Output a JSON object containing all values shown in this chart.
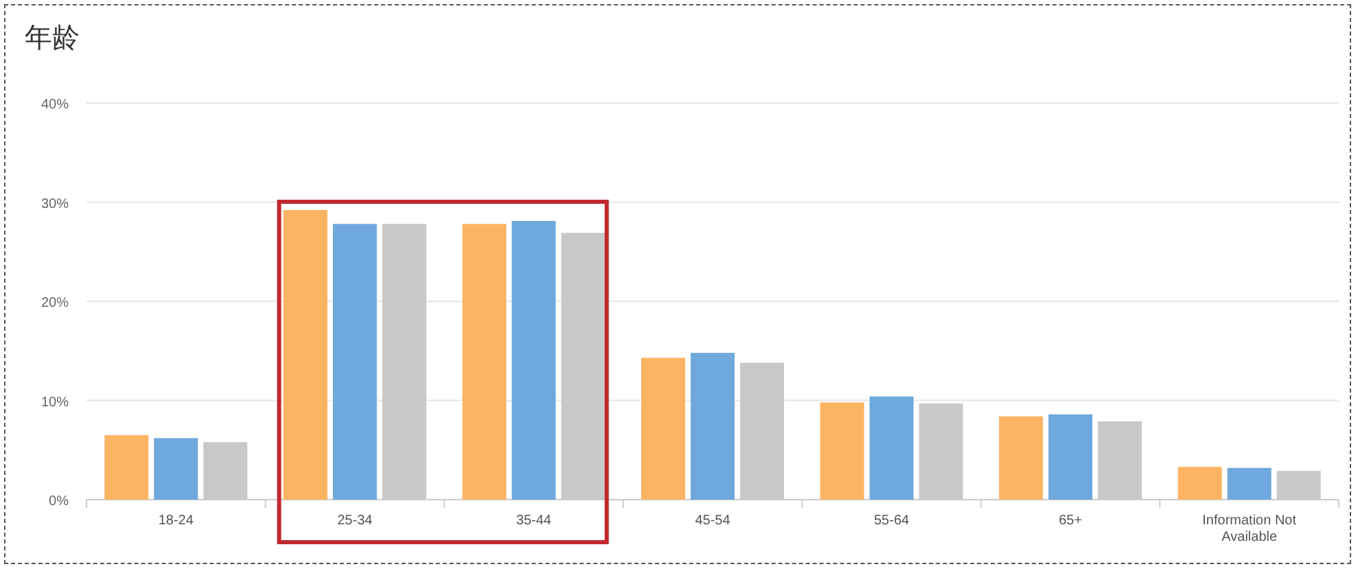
{
  "chart_data": {
    "type": "bar",
    "title": "年龄",
    "categories": [
      "18-24",
      "25-34",
      "35-44",
      "45-54",
      "55-64",
      "65+",
      "Information Not Available"
    ],
    "series": [
      {
        "color": "#fdb462",
        "values": [
          6.5,
          29.2,
          27.8,
          14.3,
          9.8,
          8.4,
          3.3
        ]
      },
      {
        "color": "#6fa8dc",
        "values": [
          6.2,
          27.8,
          28.1,
          14.8,
          10.4,
          8.6,
          3.2
        ]
      },
      {
        "color": "#c8c8c8",
        "values": [
          5.8,
          27.8,
          26.9,
          13.8,
          9.7,
          7.9,
          2.9
        ]
      }
    ],
    "ylim": [
      0,
      40
    ],
    "yticks": [
      {
        "value": 0,
        "label": "0%"
      },
      {
        "value": 10,
        "label": "10%"
      },
      {
        "value": 20,
        "label": "20%"
      },
      {
        "value": 30,
        "label": "30%"
      },
      {
        "value": 40,
        "label": "40%"
      }
    ],
    "grid": "y"
  }
}
